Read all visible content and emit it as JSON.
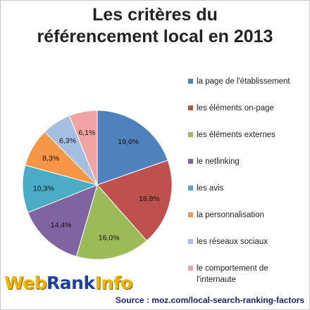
{
  "chart_data": {
    "type": "pie",
    "title": "Les critères du référencement local en 2013",
    "title_lines": [
      "Les critères du",
      "référencement local en 2013"
    ],
    "slices": [
      {
        "label": "la page de l'établissement",
        "value": 19.6,
        "value_label": "19,6%",
        "color": "#4f81bd"
      },
      {
        "label": "les éléments on-page",
        "value": 18.8,
        "value_label": "18,8%",
        "color": "#c0504d"
      },
      {
        "label": "les éléments externes",
        "value": 16.0,
        "value_label": "16,0%",
        "color": "#9bbb59"
      },
      {
        "label": "le netlinking",
        "value": 14.4,
        "value_label": "14,4%",
        "color": "#8064a2"
      },
      {
        "label": "les avis",
        "value": 10.3,
        "value_label": "10,3%",
        "color": "#4bacc6"
      },
      {
        "label": "la personnalisation",
        "value": 8.3,
        "value_label": "8,3%",
        "color": "#f79646"
      },
      {
        "label": "les réseaux sociaux",
        "value": 6.3,
        "value_label": "6,3%",
        "color": "#a5bfe0"
      },
      {
        "label": "le comportement de l'internaute",
        "value": 6.1,
        "value_label": "6,1%",
        "color": "#f2a3a3"
      }
    ],
    "legend_position": "right"
  },
  "branding": {
    "logo_part1": "Web",
    "logo_part2": "Rank",
    "logo_part3": "Info",
    "source": "Source : moz.com/local-search-ranking-factors"
  }
}
